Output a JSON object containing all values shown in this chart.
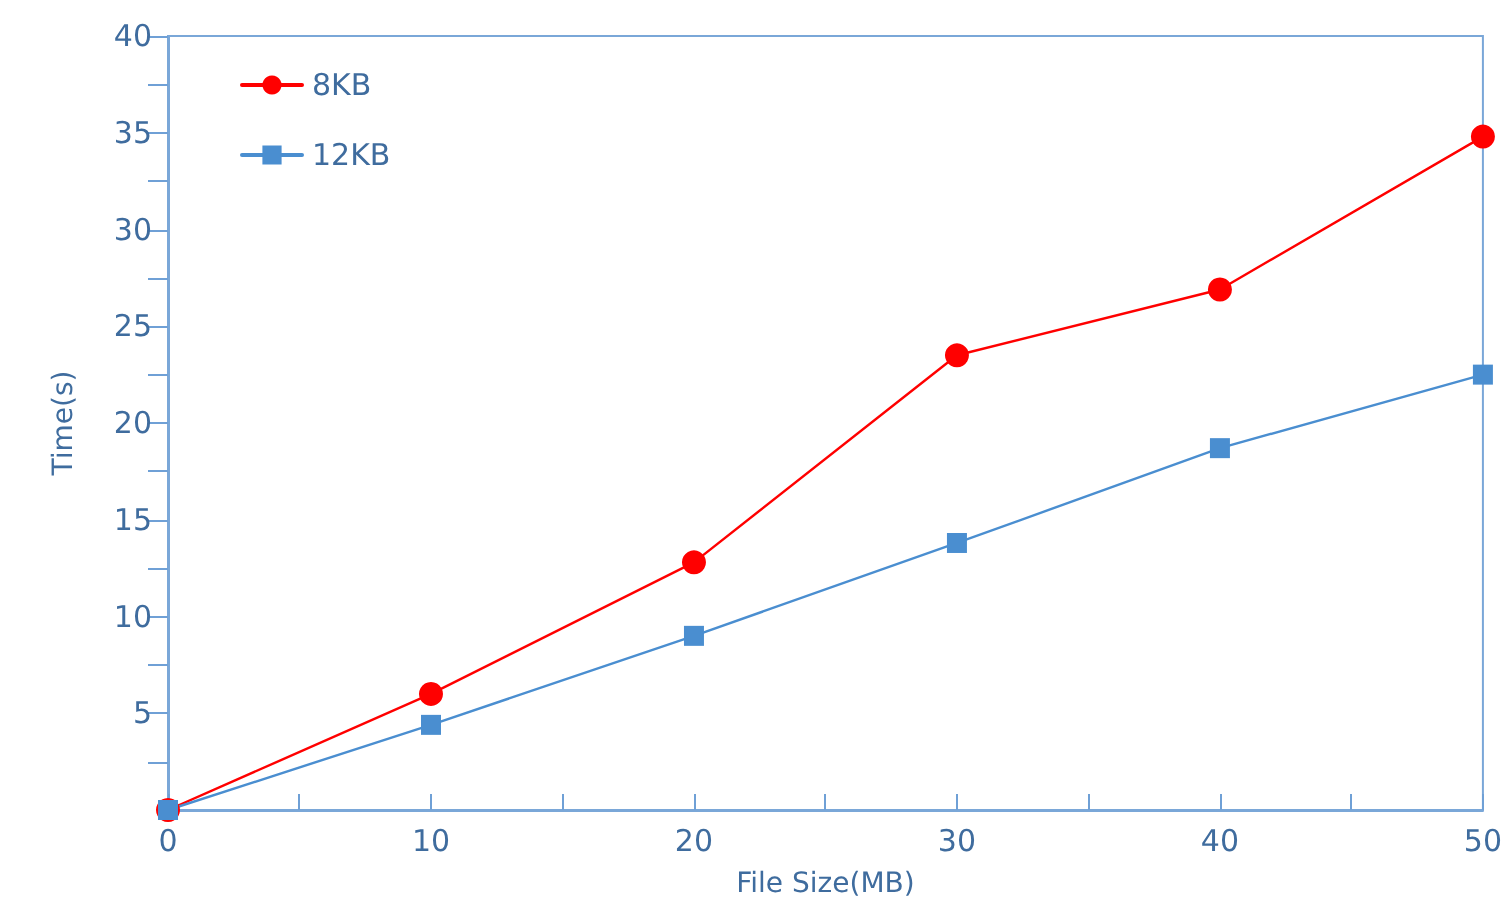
{
  "chart_data": {
    "type": "line",
    "xlabel": "File Size(MB)",
    "ylabel": "Time(s)",
    "xlim": [
      0,
      50
    ],
    "ylim": [
      0,
      40
    ],
    "xticks": [
      0,
      {
        "value": 5,
        "label": null
      },
      10,
      {
        "value": 15,
        "label": null
      },
      20,
      {
        "value": 25,
        "label": null
      },
      30,
      {
        "value": 35,
        "label": null
      },
      40,
      {
        "value": 45,
        "label": null
      },
      50
    ],
    "yticks": [
      {
        "value": 2.5,
        "label": null
      },
      5,
      {
        "value": 7.5,
        "label": null
      },
      10,
      {
        "value": 12.5,
        "label": null
      },
      15,
      {
        "value": 17.5,
        "label": null
      },
      20,
      {
        "value": 22.5,
        "label": null
      },
      25,
      {
        "value": 27.5,
        "label": null
      },
      30,
      {
        "value": 32.5,
        "label": null
      },
      35,
      {
        "value": 37.5,
        "label": null
      },
      40
    ],
    "x": [
      0,
      10,
      20,
      30,
      40,
      50
    ],
    "series": [
      {
        "name": "8KB",
        "color": "#ff0000",
        "marker": "circle",
        "values": [
          0,
          6.0,
          12.8,
          23.5,
          26.9,
          34.8
        ]
      },
      {
        "name": "12KB",
        "color": "#4a8ed0",
        "marker": "square",
        "values": [
          0,
          4.4,
          9.0,
          13.8,
          18.7,
          22.5
        ]
      }
    ],
    "grid": false,
    "legend": "top left",
    "line_style": "solid"
  }
}
